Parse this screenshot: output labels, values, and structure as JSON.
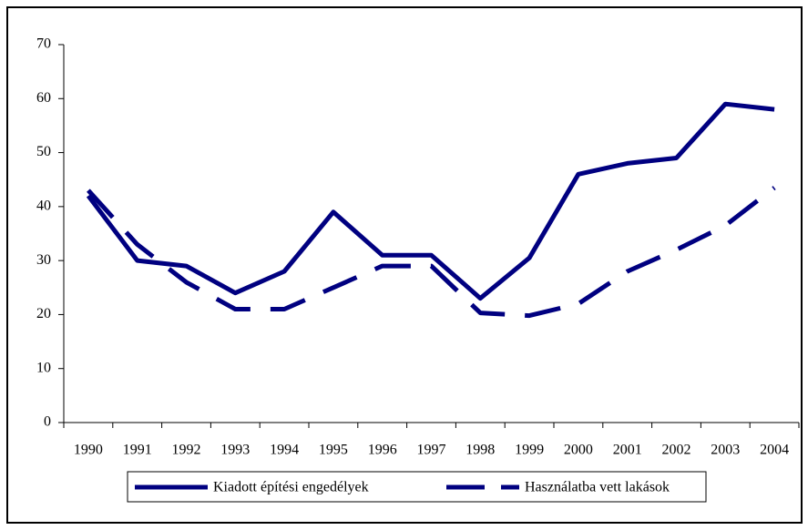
{
  "chart_data": {
    "type": "line",
    "categories": [
      "1990",
      "1991",
      "1992",
      "1993",
      "1994",
      "1995",
      "1996",
      "1997",
      "1998",
      "1999",
      "2000",
      "2001",
      "2002",
      "2003",
      "2004"
    ],
    "series": [
      {
        "name": "Kiadott építési engedélyek",
        "color": "#000080",
        "dash": "solid",
        "values": [
          42,
          30,
          29,
          24,
          28,
          39,
          31,
          31,
          23,
          30.5,
          46,
          48,
          49,
          59,
          58
        ]
      },
      {
        "name": "Használatba vett lakások",
        "color": "#000080",
        "dash": "dashed",
        "values": [
          43,
          33,
          26,
          21,
          21,
          25,
          29,
          29,
          20.3,
          19.8,
          22,
          28,
          32,
          36.5,
          43.5
        ]
      }
    ],
    "ylim": [
      0,
      70
    ],
    "yticks": [
      0,
      10,
      20,
      30,
      40,
      50,
      60,
      70
    ],
    "grid": false,
    "legend": "bottom"
  }
}
